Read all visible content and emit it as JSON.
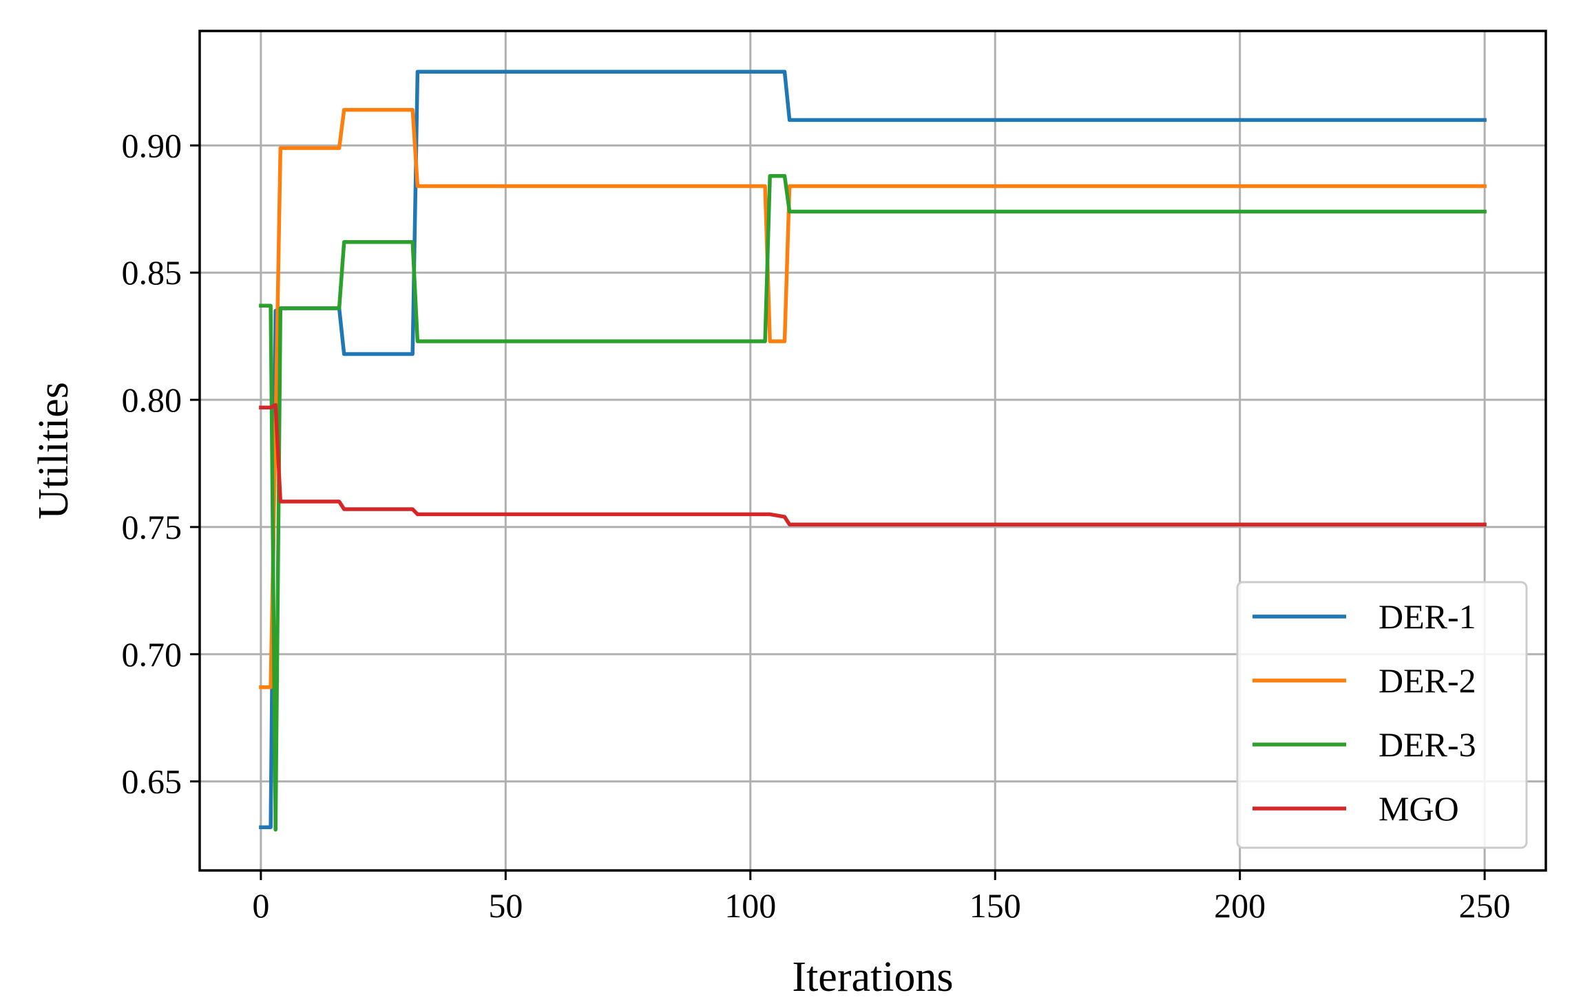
{
  "chart_data": {
    "type": "line",
    "title": "",
    "xlabel": "Iterations",
    "ylabel": "Utilities",
    "xlim": [
      -12.5,
      262.5
    ],
    "ylim": [
      0.615,
      0.945
    ],
    "xticks": [
      0,
      50,
      100,
      150,
      200,
      250
    ],
    "xtick_labels": [
      "0",
      "50",
      "100",
      "150",
      "200",
      "250"
    ],
    "yticks": [
      0.65,
      0.7,
      0.75,
      0.8,
      0.85,
      0.9
    ],
    "ytick_labels": [
      "0.65",
      "0.70",
      "0.75",
      "0.80",
      "0.85",
      "0.90"
    ],
    "grid": true,
    "legend_position": "lower-right",
    "series": [
      {
        "name": "DER-1",
        "color": "#1f77b4",
        "x": [
          0,
          2,
          3,
          4,
          16,
          17,
          30,
          31,
          32,
          105,
          107,
          108,
          250
        ],
        "y": [
          0.632,
          0.632,
          0.835,
          0.836,
          0.836,
          0.818,
          0.818,
          0.818,
          0.929,
          0.929,
          0.929,
          0.91,
          0.91
        ]
      },
      {
        "name": "DER-2",
        "color": "#ff7f0e",
        "x": [
          0,
          2,
          3,
          4,
          16,
          17,
          30,
          31,
          32,
          103,
          104,
          107,
          108,
          250
        ],
        "y": [
          0.687,
          0.687,
          0.79,
          0.899,
          0.899,
          0.914,
          0.914,
          0.914,
          0.884,
          0.884,
          0.823,
          0.823,
          0.884,
          0.884
        ]
      },
      {
        "name": "DER-3",
        "color": "#2ca02c",
        "x": [
          0,
          2,
          3,
          4,
          16,
          17,
          30,
          31,
          32,
          103,
          104,
          107,
          108,
          250
        ],
        "y": [
          0.837,
          0.837,
          0.631,
          0.836,
          0.836,
          0.862,
          0.862,
          0.862,
          0.823,
          0.823,
          0.888,
          0.888,
          0.874,
          0.874
        ]
      },
      {
        "name": "MGO",
        "color": "#d62728",
        "x": [
          0,
          2,
          3,
          4,
          16,
          17,
          30,
          31,
          32,
          103,
          104,
          107,
          108,
          250
        ],
        "y": [
          0.797,
          0.797,
          0.798,
          0.76,
          0.76,
          0.757,
          0.757,
          0.757,
          0.755,
          0.755,
          0.755,
          0.754,
          0.751,
          0.751
        ]
      }
    ]
  }
}
